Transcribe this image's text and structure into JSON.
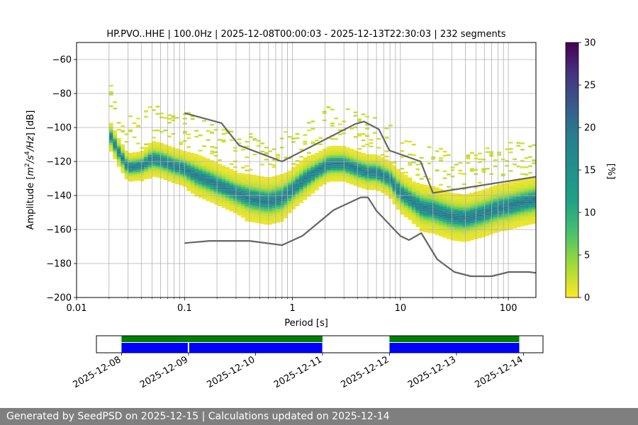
{
  "chart_data": [
    {
      "type": "heatmap",
      "title": "HP.PVO..HHE | 100.0Hz | 2025-12-08T00:00:03 - 2025-12-13T22:30:03 | 232 segments",
      "xlabel": "Period [s]",
      "ylabel_parts": [
        "Amplitude [",
        "m",
        "2",
        "/s",
        "4",
        "/Hz",
        "] [dB]"
      ],
      "x_scale": "log",
      "xlim": [
        0.01,
        180
      ],
      "ylim": [
        -200,
        -50
      ],
      "x_ticks": [
        0.01,
        0.1,
        1,
        10,
        100
      ],
      "x_tick_labels": [
        "0.01",
        "0.1",
        "1",
        "10",
        "100"
      ],
      "y_ticks": [
        -200,
        -180,
        -160,
        -140,
        -120,
        -100,
        -80,
        -60
      ],
      "y_tick_labels": [
        "−200",
        "−180",
        "−160",
        "−140",
        "−120",
        "−100",
        "−80",
        "−60"
      ],
      "grid": "vertical",
      "colorbar": {
        "label": "[%]",
        "colormap": "viridis_r",
        "range": [
          0,
          30
        ],
        "ticks": [
          0,
          5,
          10,
          15,
          20,
          25,
          30
        ],
        "tick_labels": [
          "0",
          "5",
          "10",
          "15",
          "20",
          "25",
          "30"
        ]
      },
      "psd_mode_curve": {
        "period": [
          0.02,
          0.025,
          0.03,
          0.04,
          0.05,
          0.06,
          0.08,
          0.1,
          0.13,
          0.17,
          0.2,
          0.3,
          0.4,
          0.6,
          0.8,
          1.0,
          1.3,
          1.7,
          2.2,
          3.0,
          4.0,
          5.0,
          6.0,
          7.0,
          8.0,
          10,
          13,
          16,
          20,
          30,
          40,
          60,
          80,
          100,
          130,
          180
        ],
        "amplitude_db": [
          -103,
          -115,
          -123,
          -122,
          -118,
          -119,
          -122,
          -124,
          -128,
          -131,
          -133,
          -138,
          -141,
          -143,
          -141,
          -136,
          -130,
          -125,
          -121,
          -121,
          -124,
          -126,
          -126,
          -128,
          -130,
          -138,
          -143,
          -147,
          -148,
          -152,
          -153,
          -150,
          -147,
          -146,
          -144,
          -142
        ],
        "spread_db": [
          5,
          5,
          5,
          5,
          6,
          6,
          6,
          6,
          7,
          7,
          7,
          7,
          8,
          8,
          8,
          7,
          7,
          6,
          6,
          6,
          6,
          6,
          6,
          6,
          6,
          7,
          7,
          8,
          8,
          8,
          8,
          8,
          8,
          8,
          8,
          8
        ]
      },
      "noise_model_high": {
        "period": [
          0.1,
          0.22,
          0.32,
          0.8,
          3.8,
          4.6,
          6.3,
          7.9,
          15.4,
          20,
          180
        ],
        "amplitude_db": [
          -91.5,
          -97.4,
          -110.5,
          -120,
          -98,
          -96.5,
          -101,
          -113.5,
          -120,
          -138.5,
          -129
        ]
      },
      "noise_model_low": {
        "period": [
          0.1,
          0.17,
          0.4,
          0.8,
          1.24,
          2.4,
          4.3,
          5.0,
          6.0,
          10,
          12,
          15.6,
          21.9,
          31.6,
          45,
          70,
          101,
          154,
          180
        ],
        "amplitude_db": [
          -168,
          -166.7,
          -166.7,
          -169.2,
          -163.7,
          -148.6,
          -141.1,
          -141.1,
          -149,
          -163.8,
          -166.2,
          -162.1,
          -177.5,
          -185,
          -187.5,
          -187.5,
          -185,
          -185,
          -185.5
        ]
      },
      "model_color": "#666666"
    },
    {
      "type": "bar",
      "description_role": "data availability timeline",
      "x_tick_labels": [
        "2025-12-08",
        "2025-12-09",
        "2025-12-10",
        "2025-12-11",
        "2025-12-12",
        "2025-12-13",
        "2025-12-14"
      ],
      "x_range": [
        "2025-12-07T15:00",
        "2025-12-14T07:00"
      ],
      "data_span": {
        "start": "2025-12-08T00:00",
        "end": "2025-12-13T22:30",
        "color": "#008000"
      },
      "used_segments": [
        {
          "start": "2025-12-08T00:00",
          "end": "2025-12-08T23:45",
          "color": "#0000ff"
        },
        {
          "start": "2025-12-09T00:15",
          "end": "2025-12-10T23:55",
          "color": "#0000ff"
        },
        {
          "start": "2025-12-12T00:00",
          "end": "2025-12-13T22:30",
          "color": "#0000ff"
        }
      ],
      "gaps": [
        {
          "start": "2025-12-11T00:00",
          "end": "2025-12-12T00:00"
        }
      ]
    }
  ],
  "footer": {
    "text": "Generated by SeedPSD on 2025-12-15 | Calculations updated on 2025-12-14"
  }
}
